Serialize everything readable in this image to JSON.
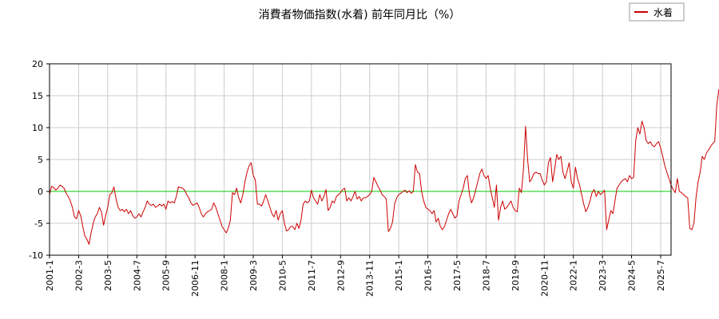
{
  "chart_data": {
    "type": "line",
    "title": "消費者物価指数(水着) 前年同月比（%）",
    "legend": {
      "position": "top-right",
      "entries": [
        "水着"
      ]
    },
    "xlabel": "",
    "ylabel": "",
    "ylim": [
      -10,
      20
    ],
    "yticks": [
      -10,
      -5,
      0,
      5,
      10,
      15,
      20
    ],
    "x_tick_labels": [
      "2001-1",
      "2002-3",
      "2003-5",
      "2004-7",
      "2005-9",
      "2006-11",
      "2008-1",
      "2009-3",
      "2010-5",
      "2011-7",
      "2012-9",
      "2013-11",
      "2015-1",
      "2016-3",
      "2017-5",
      "2018-7",
      "2019-9",
      "2020-11",
      "2022-1",
      "2023-3",
      "2024-5",
      "2025-7"
    ],
    "grid": true,
    "zero_line": {
      "value": 0,
      "color": "#00cc00"
    },
    "series": [
      {
        "name": "水着",
        "color": "#cc0000",
        "start": "2001-01",
        "values": [
          -0.5,
          0.8,
          0.6,
          0.2,
          0.5,
          1.0,
          0.8,
          0.5,
          -0.3,
          -0.8,
          -1.5,
          -2.5,
          -4.0,
          -4.3,
          -3.0,
          -3.8,
          -5.5,
          -7.0,
          -7.5,
          -8.3,
          -6.5,
          -5.0,
          -4.0,
          -3.5,
          -2.5,
          -3.2,
          -5.3,
          -3.8,
          -2.5,
          -0.5,
          -0.2,
          0.7,
          -1.2,
          -2.5,
          -3.0,
          -2.8,
          -3.2,
          -2.8,
          -3.5,
          -3.0,
          -3.8,
          -4.2,
          -4.0,
          -3.5,
          -4.0,
          -3.2,
          -2.5,
          -1.5,
          -2.0,
          -2.2,
          -2.0,
          -2.5,
          -2.3,
          -2.0,
          -2.3,
          -2.0,
          -2.8,
          -1.5,
          -1.8,
          -1.6,
          -1.8,
          -0.8,
          0.7,
          0.6,
          0.5,
          0.2,
          -0.5,
          -1.0,
          -1.8,
          -2.2,
          -2.0,
          -1.8,
          -2.5,
          -3.5,
          -4.0,
          -3.5,
          -3.2,
          -3.0,
          -2.8,
          -1.8,
          -2.5,
          -3.5,
          -4.5,
          -5.5,
          -6.0,
          -6.5,
          -5.8,
          -4.5,
          -0.2,
          -0.5,
          0.5,
          -1.0,
          -1.8,
          -0.5,
          1.5,
          3.0,
          4.0,
          4.5,
          2.5,
          1.8,
          -2.0,
          -2.0,
          -2.3,
          -1.5,
          -0.5,
          -1.5,
          -2.5,
          -3.5,
          -4.0,
          -3.0,
          -4.5,
          -3.5,
          -3.0,
          -5.0,
          -6.2,
          -6.0,
          -5.5,
          -5.5,
          -6.0,
          -5.0,
          -5.8,
          -4.5,
          -2.0,
          -1.5,
          -1.8,
          -1.5,
          0.2,
          -1.0,
          -1.5,
          -2.0,
          -0.5,
          -1.5,
          -0.8,
          0.3,
          -3.0,
          -2.5,
          -1.5,
          -1.8,
          -0.8,
          -0.5,
          -0.2,
          0.3,
          0.5,
          -1.5,
          -1.0,
          -1.5,
          -0.8,
          0.0,
          -1.2,
          -0.8,
          -1.5,
          -1.0,
          -1.0,
          -0.8,
          -0.5,
          0.0,
          2.2,
          1.5,
          0.8,
          0.2,
          -0.5,
          -0.8,
          -1.2,
          -6.3,
          -5.8,
          -4.8,
          -2.0,
          -1.0,
          -0.5,
          -0.3,
          0.0,
          0.2,
          -0.2,
          0.1,
          -0.3,
          0.0,
          4.2,
          3.0,
          2.8,
          0.0,
          -1.5,
          -2.5,
          -2.8,
          -3.0,
          -3.5,
          -3.0,
          -4.8,
          -4.2,
          -5.5,
          -6.0,
          -5.5,
          -4.5,
          -3.5,
          -2.8,
          -3.5,
          -4.2,
          -3.8,
          -1.5,
          -0.5,
          0.5,
          2.0,
          2.5,
          -0.5,
          -1.8,
          -1.0,
          0.2,
          1.5,
          2.8,
          3.5,
          2.5,
          2.0,
          2.5,
          0.5,
          -1.0,
          -2.5,
          1.0,
          -4.5,
          -2.5,
          -1.5,
          -2.8,
          -2.5,
          -2.0,
          -1.5,
          -2.5,
          -3.0,
          -3.2,
          0.5,
          -0.2,
          3.5,
          10.2,
          5.0,
          1.5,
          2.0,
          2.8,
          3.0,
          2.8,
          2.8,
          1.8,
          1.0,
          1.5,
          4.5,
          5.3,
          1.5,
          3.5,
          5.8,
          5.0,
          5.5,
          3.0,
          2.0,
          3.2,
          4.5,
          1.5,
          0.5,
          3.8,
          2.0,
          1.0,
          -0.5,
          -2.0,
          -3.2,
          -2.5,
          -1.5,
          -0.2,
          0.3,
          -0.8,
          0.0,
          -0.5,
          -0.2,
          0.2,
          -6.0,
          -4.5,
          -3.0,
          -3.5,
          -1.5,
          0.5,
          1.0,
          1.5,
          1.8,
          2.0,
          1.5,
          2.5,
          2.0,
          2.2,
          8.0,
          10.0,
          9.0,
          11.0,
          10.0,
          8.0,
          7.5,
          7.8,
          7.2,
          7.0,
          7.5,
          7.8,
          6.8,
          5.5,
          4.0,
          3.0,
          2.0,
          1.0,
          0.3,
          -0.2,
          2.0,
          0.0,
          -0.2,
          -0.5,
          -0.8,
          -1.0,
          -5.8,
          -6.0,
          -5.0,
          -1.0,
          1.5,
          3.0,
          5.5,
          5.0,
          6.0,
          6.5,
          7.0,
          7.5,
          7.8,
          13.5,
          16.0
        ]
      }
    ]
  }
}
